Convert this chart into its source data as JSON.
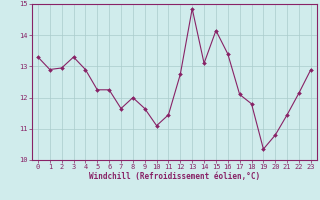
{
  "x": [
    0,
    1,
    2,
    3,
    4,
    5,
    6,
    7,
    8,
    9,
    10,
    11,
    12,
    13,
    14,
    15,
    16,
    17,
    18,
    19,
    20,
    21,
    22,
    23
  ],
  "y": [
    13.3,
    12.9,
    12.95,
    13.3,
    12.9,
    12.25,
    12.25,
    11.65,
    12.0,
    11.65,
    11.1,
    11.45,
    12.75,
    14.85,
    13.1,
    14.15,
    13.4,
    12.1,
    11.8,
    10.35,
    10.8,
    11.45,
    12.15,
    12.9
  ],
  "line_color": "#882266",
  "marker": "D",
  "marker_size": 2,
  "bg_color": "#d0ecec",
  "grid_color": "#aacccc",
  "xlabel": "Windchill (Refroidissement éolien,°C)",
  "xlabel_color": "#882266",
  "ylim": [
    10,
    15
  ],
  "xlim": [
    -0.5,
    23.5
  ],
  "yticks": [
    10,
    11,
    12,
    13,
    14,
    15
  ],
  "xticks": [
    0,
    1,
    2,
    3,
    4,
    5,
    6,
    7,
    8,
    9,
    10,
    11,
    12,
    13,
    14,
    15,
    16,
    17,
    18,
    19,
    20,
    21,
    22,
    23
  ],
  "tick_color": "#882266",
  "tick_fontsize": 5.0,
  "xlabel_fontsize": 5.5,
  "linewidth": 0.8
}
